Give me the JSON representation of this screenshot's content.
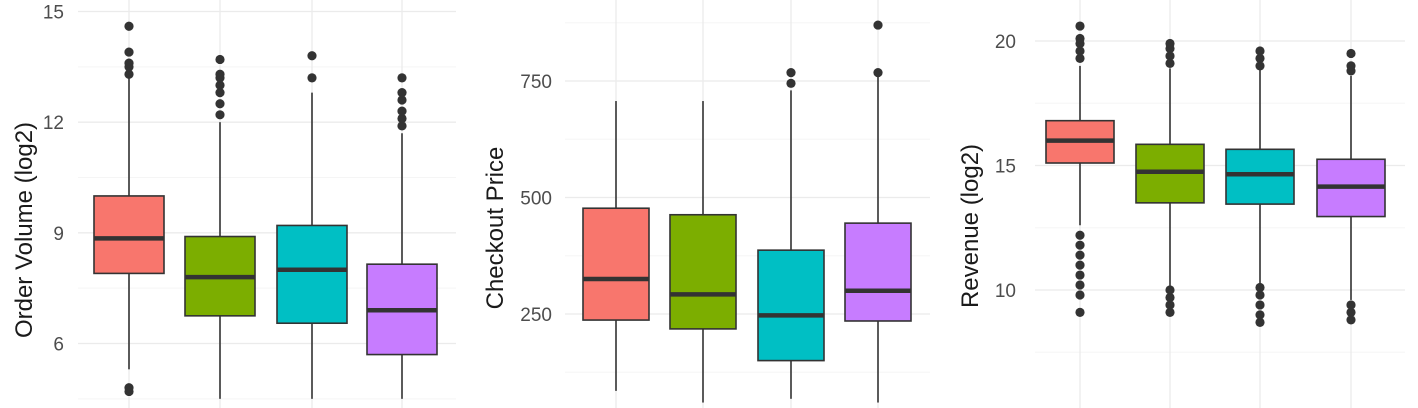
{
  "chart_data": [
    {
      "type": "boxplot",
      "ylabel": "Order Volume (log2)",
      "ylim": [
        4.5,
        15
      ],
      "yticks": [
        6,
        9,
        12,
        15
      ],
      "grid": true,
      "legend": "none",
      "series": [
        {
          "color": "#F8766D",
          "q1": 7.9,
          "median": 8.85,
          "q3": 10.0,
          "whisker_low": 5.3,
          "whisker_high": 13.2,
          "outliers": [
            4.7,
            4.8,
            13.3,
            13.5,
            13.6,
            13.9,
            14.6
          ]
        },
        {
          "color": "#7CAE00",
          "q1": 6.75,
          "median": 7.8,
          "q3": 8.9,
          "whisker_low": 4.5,
          "whisker_high": 12.0,
          "outliers": [
            12.2,
            12.5,
            12.8,
            13.0,
            13.2,
            13.3,
            13.7
          ]
        },
        {
          "color": "#00BFC4",
          "q1": 6.55,
          "median": 8.0,
          "q3": 9.2,
          "whisker_low": 4.5,
          "whisker_high": 12.8,
          "outliers": [
            13.2,
            13.8
          ]
        },
        {
          "color": "#C77CFF",
          "q1": 5.7,
          "median": 6.9,
          "q3": 8.15,
          "whisker_low": 4.5,
          "whisker_high": 11.7,
          "outliers": [
            11.9,
            12.1,
            12.3,
            12.6,
            12.8,
            13.2
          ]
        }
      ]
    },
    {
      "type": "boxplot",
      "ylabel": "Checkout Price",
      "ylim": [
        60,
        900
      ],
      "yticks": [
        250,
        500,
        750
      ],
      "grid": true,
      "legend": "none",
      "series": [
        {
          "color": "#F8766D",
          "q1": 237,
          "median": 325,
          "q3": 477,
          "whisker_low": 85,
          "whisker_high": 707,
          "outliers": []
        },
        {
          "color": "#7CAE00",
          "q1": 218,
          "median": 292,
          "q3": 463,
          "whisker_low": 60,
          "whisker_high": 707,
          "outliers": []
        },
        {
          "color": "#00BFC4",
          "q1": 150,
          "median": 247,
          "q3": 387,
          "whisker_low": 68,
          "whisker_high": 730,
          "outliers": [
            745,
            768
          ]
        },
        {
          "color": "#C77CFF",
          "q1": 235,
          "median": 300,
          "q3": 445,
          "whisker_low": 60,
          "whisker_high": 760,
          "outliers": [
            768,
            870
          ]
        }
      ]
    },
    {
      "type": "boxplot",
      "ylabel": "Revenue (log2)",
      "ylim": [
        5,
        21.3
      ],
      "yticks": [
        5,
        10,
        15,
        20
      ],
      "grid": true,
      "legend": "none",
      "series": [
        {
          "color": "#F8766D",
          "q1": 15.1,
          "median": 16.0,
          "q3": 16.8,
          "whisker_low": 12.6,
          "whisker_high": 19.0,
          "outliers": [
            9.1,
            9.8,
            10.2,
            10.6,
            11.0,
            11.4,
            11.8,
            12.2,
            19.3,
            19.6,
            19.9,
            20.1,
            20.6
          ]
        },
        {
          "color": "#7CAE00",
          "q1": 13.5,
          "median": 14.75,
          "q3": 15.85,
          "whisker_low": 10.1,
          "whisker_high": 18.9,
          "outliers": [
            9.1,
            9.4,
            9.7,
            10.0,
            19.1,
            19.4,
            19.7,
            19.9
          ]
        },
        {
          "color": "#00BFC4",
          "q1": 13.45,
          "median": 14.65,
          "q3": 15.65,
          "whisker_low": 10.2,
          "whisker_high": 18.9,
          "outliers": [
            8.7,
            9.0,
            9.4,
            9.8,
            10.1,
            19.0,
            19.3,
            19.6
          ]
        },
        {
          "color": "#C77CFF",
          "q1": 12.95,
          "median": 14.15,
          "q3": 15.25,
          "whisker_low": 9.6,
          "whisker_high": 18.6,
          "outliers": [
            8.8,
            9.1,
            9.4,
            18.8,
            19.0,
            19.5
          ]
        }
      ]
    }
  ]
}
